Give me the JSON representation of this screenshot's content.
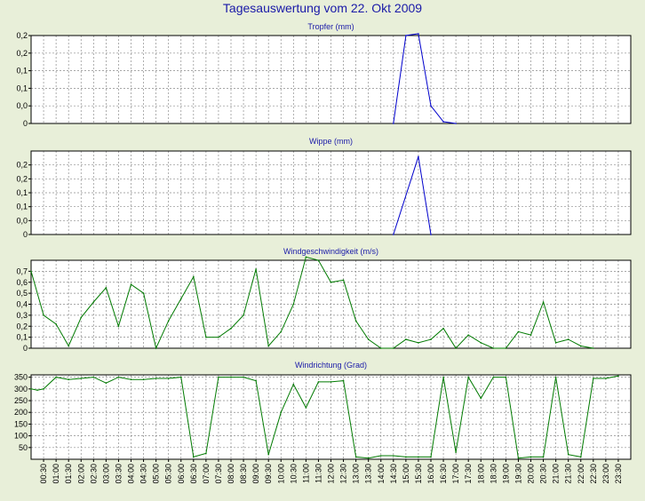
{
  "title": "Tagesauswertung vom 22. Okt 2009",
  "x_tick_labels": [
    "00:30",
    "01:00",
    "01:30",
    "02:00",
    "02:30",
    "03:00",
    "03:30",
    "04:00",
    "04:30",
    "05:00",
    "05:30",
    "06:00",
    "06:30",
    "07:00",
    "07:30",
    "08:00",
    "08:30",
    "09:00",
    "09:30",
    "10:00",
    "10:30",
    "11:00",
    "11:30",
    "12:00",
    "12:30",
    "13:00",
    "13:30",
    "14:00",
    "14:30",
    "15:00",
    "15:30",
    "16:00",
    "16:30",
    "17:00",
    "17:30",
    "18:00",
    "18:30",
    "19:00",
    "19:30",
    "20:00",
    "20:30",
    "21:00",
    "21:30",
    "22:00",
    "22:30",
    "23:00",
    "23:30"
  ],
  "chart_data": [
    {
      "type": "line",
      "title": "Tropfer (mm)",
      "color": "#0000cc",
      "ylim": [
        0,
        0.25
      ],
      "yticks": [
        0,
        0.05,
        0.1,
        0.15,
        0.2,
        0.25
      ],
      "ytick_labels": [
        "0",
        "0,0",
        "0,1",
        "0,1",
        "0,2",
        "0,2"
      ],
      "grid": true,
      "x": [
        "14:30",
        "15:00",
        "15:30",
        "16:00",
        "16:30",
        "17:00"
      ],
      "y": [
        0,
        0.25,
        0.255,
        0.05,
        0.005,
        0
      ]
    },
    {
      "type": "line",
      "title": "Wippe (mm)",
      "color": "#0000cc",
      "ylim": [
        0,
        0.3
      ],
      "yticks": [
        0,
        0.05,
        0.1,
        0.15,
        0.2,
        0.25
      ],
      "ytick_labels": [
        "0",
        "0,0",
        "0,1",
        "0,1",
        "0,2",
        "0,2"
      ],
      "grid": true,
      "x": [
        "14:30",
        "15:30",
        "16:00"
      ],
      "y": [
        0,
        0.28,
        0
      ]
    },
    {
      "type": "line",
      "title": "Windgeschwindigkeit (m/s)",
      "color": "#007a00",
      "ylim": [
        0,
        0.8
      ],
      "yticks": [
        0,
        0.1,
        0.2,
        0.3,
        0.4,
        0.5,
        0.6,
        0.7
      ],
      "ytick_labels": [
        "0",
        "0,1",
        "0,2",
        "0,3",
        "0,4",
        "0,5",
        "0,6",
        "0,7"
      ],
      "grid": true,
      "x": [
        "00:00",
        "00:30",
        "01:00",
        "01:30",
        "02:00",
        "02:30",
        "03:00",
        "03:30",
        "04:00",
        "04:30",
        "05:00",
        "05:30",
        "06:00",
        "06:30",
        "07:00",
        "07:30",
        "08:00",
        "08:30",
        "09:00",
        "09:30",
        "10:00",
        "10:30",
        "11:00",
        "11:30",
        "12:00",
        "12:30",
        "13:00",
        "13:30",
        "14:00",
        "14:30",
        "15:00",
        "15:30",
        "16:00",
        "16:30",
        "17:00",
        "17:30",
        "18:00",
        "18:30",
        "19:00",
        "19:30",
        "20:00",
        "20:30",
        "21:00",
        "21:30",
        "22:00",
        "22:30"
      ],
      "y": [
        0.7,
        0.3,
        0.22,
        0.02,
        0.28,
        0.42,
        0.55,
        0.2,
        0.58,
        0.5,
        0,
        0.25,
        0.45,
        0.65,
        0.1,
        0.1,
        0.18,
        0.3,
        0.72,
        0.02,
        0.15,
        0.4,
        0.83,
        0.8,
        0.6,
        0.62,
        0.25,
        0.08,
        0,
        0,
        0.08,
        0.05,
        0.08,
        0.18,
        0,
        0.12,
        0.05,
        0,
        0,
        0.15,
        0.12,
        0.42,
        0.05,
        0.08,
        0.02,
        0
      ]
    },
    {
      "type": "line",
      "title": "Windrichtung (Grad)",
      "color": "#007a00",
      "ylim": [
        0,
        360
      ],
      "yticks": [
        50,
        100,
        150,
        200,
        250,
        300,
        350
      ],
      "ytick_labels": [
        "50",
        "100",
        "150",
        "200",
        "250",
        "300",
        "350"
      ],
      "grid": true,
      "x": [
        "00:00",
        "00:15",
        "00:30",
        "01:00",
        "01:30",
        "02:00",
        "02:30",
        "03:00",
        "03:30",
        "04:00",
        "04:30",
        "05:00",
        "05:30",
        "06:00",
        "06:30",
        "07:00",
        "07:30",
        "08:00",
        "08:30",
        "09:00",
        "09:30",
        "10:00",
        "10:30",
        "11:00",
        "11:30",
        "12:00",
        "12:30",
        "13:00",
        "13:30",
        "14:00",
        "14:30",
        "15:00",
        "15:30",
        "16:00",
        "16:30",
        "17:00",
        "17:30",
        "18:00",
        "18:30",
        "19:00",
        "19:30",
        "20:00",
        "20:30",
        "21:00",
        "21:30",
        "22:00",
        "22:30",
        "23:00",
        "23:30"
      ],
      "y": [
        300,
        295,
        300,
        350,
        340,
        345,
        350,
        325,
        350,
        340,
        340,
        345,
        345,
        350,
        10,
        25,
        350,
        350,
        350,
        335,
        20,
        200,
        320,
        220,
        330,
        330,
        335,
        10,
        5,
        15,
        15,
        10,
        10,
        10,
        350,
        30,
        350,
        260,
        350,
        350,
        5,
        10,
        10,
        350,
        20,
        10,
        345,
        345,
        355
      ]
    }
  ]
}
